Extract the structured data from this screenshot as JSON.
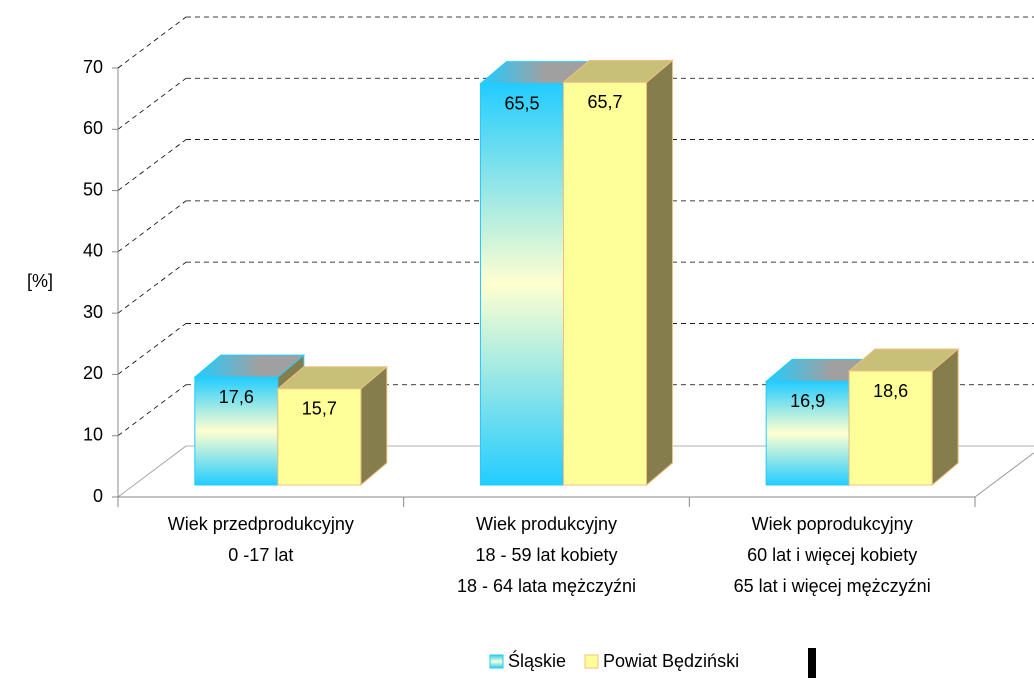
{
  "chart_data": {
    "type": "bar3d",
    "ylabel": "[%]",
    "categories": [
      [
        "Wiek przedprodukcyjny",
        "0 -17 lat"
      ],
      [
        "Wiek produkcyjny",
        "18 - 59 lat kobiety",
        "18 - 64 lata mężczyźni"
      ],
      [
        "Wiek poprodukcyjny",
        "60 lat i więcej kobiety",
        "65 lat i więcej mężczyźni"
      ]
    ],
    "series": [
      {
        "name": "Śląskie",
        "color": "#22ccff",
        "values": [
          17.6,
          65.5,
          16.9
        ],
        "value_labels": [
          "17,6",
          "65,5",
          "16,9"
        ]
      },
      {
        "name": "Powiat Będziński",
        "color": "#ffff99",
        "values": [
          15.7,
          65.7,
          18.6
        ],
        "value_labels": [
          "15,7",
          "65,7",
          "18,6"
        ]
      }
    ],
    "ylim": [
      0,
      70
    ],
    "yticks": [
      0,
      10,
      20,
      30,
      40,
      50,
      60,
      70
    ],
    "grid": true
  }
}
